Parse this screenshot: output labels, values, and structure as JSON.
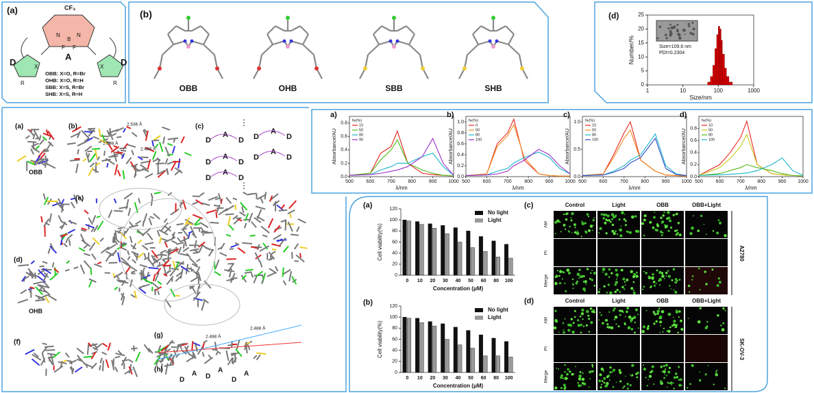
{
  "panel_a": {
    "label": "(a)",
    "cf3": "CF₃",
    "acceptor": "A",
    "donor": "D",
    "x": "X",
    "r": "R",
    "b": "B",
    "f": "F",
    "n": "N",
    "variants": [
      "OBB: X=O, R=Br",
      "OHB: X=O, R=H",
      "SBB: X=S, R=Br",
      "SHB: X=S, R=H"
    ]
  },
  "panel_b": {
    "label": "(b)",
    "molecules": [
      "OBB",
      "OHB",
      "SBB",
      "SHB"
    ]
  },
  "dls": {
    "type": "histogram",
    "label": "(d)",
    "ylabel": "Number/%",
    "xlabel": "Size/nm",
    "size_text": "Size=109.6 nm",
    "pdi_text": "PDI=0.2304",
    "log_x": true,
    "color": "#d40000",
    "xlim": [
      1,
      1000
    ],
    "xticks": [
      1,
      10,
      100,
      1000
    ],
    "ylim": [
      0,
      25
    ],
    "yticks": [
      0,
      5,
      10,
      15,
      20,
      25
    ],
    "bins": [
      50,
      60,
      70,
      80,
      90,
      100,
      110,
      120,
      130,
      150,
      170,
      200,
      250
    ],
    "counts": [
      1,
      3,
      7,
      13,
      18,
      21,
      20,
      16,
      11,
      6,
      3,
      1
    ]
  },
  "crystal": {
    "labels": [
      "(a)",
      "(b)",
      "(c)",
      "(d)",
      "(e)",
      "(f)",
      "(g)",
      "(h)"
    ],
    "names": [
      "OBB",
      "OHB"
    ],
    "distances": [
      "2.536 Å",
      "2.608 Å",
      "2.486 Å",
      "2.488 Å"
    ],
    "motif": [
      "D",
      "A"
    ],
    "ellipsis": "⋮"
  },
  "spectra": {
    "xlabel": "λ/nm",
    "ylabel": "Absorbance/AU",
    "legend_title": "fw(%)",
    "xlim": [
      500,
      1000
    ],
    "xticks": [
      500,
      600,
      700,
      800,
      900,
      1000
    ],
    "x": [
      500,
      600,
      650,
      700,
      730,
      780,
      850,
      900,
      950,
      1000
    ],
    "charts": [
      {
        "type": "line",
        "label": "a)",
        "ylim": [
          0,
          0.9
        ],
        "yticks": [
          {
            "value": 0,
            "label": "0.0"
          },
          0.2,
          0.4,
          0.6,
          0.8
        ],
        "series": [
          {
            "name": "10",
            "color": "#e8231f",
            "values": [
              0.02,
              0.05,
              0.35,
              0.45,
              0.68,
              0.2,
              0.05,
              0.03,
              0.02,
              0.01
            ]
          },
          {
            "name": "50",
            "color": "#4cbb17",
            "values": [
              0.02,
              0.05,
              0.25,
              0.4,
              0.55,
              0.2,
              0.1,
              0.05,
              0.02,
              0.01
            ]
          },
          {
            "name": "80",
            "color": "#19b5c9",
            "values": [
              0.02,
              0.03,
              0.1,
              0.15,
              0.2,
              0.2,
              0.3,
              0.35,
              0.15,
              0.02
            ]
          },
          {
            "name": "90",
            "color": "#9b2bc9",
            "values": [
              0.02,
              0.03,
              0.05,
              0.08,
              0.1,
              0.15,
              0.3,
              0.57,
              0.2,
              0.02
            ]
          }
        ]
      },
      {
        "type": "line",
        "label": "b)",
        "ylim": [
          0,
          1.1
        ],
        "yticks": [
          {
            "value": 0,
            "label": "0.0"
          },
          0.2,
          0.4,
          0.6,
          0.8,
          {
            "value": 1,
            "label": "1.0"
          }
        ],
        "series": [
          {
            "name": "0",
            "color": "#e8231f",
            "values": [
              0.02,
              0.05,
              0.6,
              0.8,
              1.05,
              0.3,
              0.05,
              0.02,
              0.01,
              0.01
            ]
          },
          {
            "name": "50",
            "color": "#f08c1a",
            "values": [
              0.02,
              0.05,
              0.55,
              0.75,
              0.95,
              0.35,
              0.05,
              0.02,
              0.01,
              0.01
            ]
          },
          {
            "name": "80",
            "color": "#19b5c9",
            "values": [
              0.02,
              0.03,
              0.1,
              0.15,
              0.25,
              0.35,
              0.45,
              0.35,
              0.15,
              0.05
            ]
          },
          {
            "name": "100",
            "color": "#9b2bc9",
            "values": [
              0.02,
              0.03,
              0.05,
              0.1,
              0.2,
              0.3,
              0.5,
              0.4,
              0.2,
              0.05
            ]
          }
        ]
      },
      {
        "type": "line",
        "label": "c)",
        "ylim": [
          0,
          1.1
        ],
        "yticks": [
          {
            "value": 0,
            "label": "0.0"
          },
          0.5,
          {
            "value": 1,
            "label": "1.0"
          }
        ],
        "series": [
          {
            "name": "10",
            "color": "#e8231f",
            "values": [
              0.02,
              0.05,
              0.4,
              0.8,
              1.0,
              0.3,
              0.1,
              0.03,
              0.02,
              0.01
            ]
          },
          {
            "name": "50",
            "color": "#f08c1a",
            "values": [
              0.02,
              0.05,
              0.35,
              0.7,
              0.85,
              0.3,
              0.1,
              0.03,
              0.02,
              0.01
            ]
          },
          {
            "name": "80",
            "color": "#19b5c9",
            "values": [
              0.02,
              0.03,
              0.1,
              0.2,
              0.3,
              0.4,
              0.78,
              0.2,
              0.05,
              0.02
            ]
          },
          {
            "name": "100",
            "color": "#2846c8",
            "values": [
              0.02,
              0.03,
              0.08,
              0.15,
              0.25,
              0.35,
              0.7,
              0.15,
              0.04,
              0.02
            ]
          }
        ]
      },
      {
        "type": "line",
        "label": "d)",
        "ylim": [
          0,
          1.0
        ],
        "yticks": [
          {
            "value": 0,
            "label": "0.0"
          },
          0.2,
          0.4,
          0.6,
          0.8
        ],
        "series": [
          {
            "name": "10",
            "color": "#e8231f",
            "values": [
              0.02,
              0.2,
              0.4,
              0.65,
              0.92,
              0.2,
              0.05,
              0.03,
              0.02,
              0.01
            ]
          },
          {
            "name": "50",
            "color": "#c9c917",
            "values": [
              0.02,
              0.15,
              0.3,
              0.5,
              0.7,
              0.2,
              0.05,
              0.03,
              0.02,
              0.01
            ]
          },
          {
            "name": "80",
            "color": "#4cbb17",
            "values": [
              0.02,
              0.05,
              0.1,
              0.15,
              0.2,
              0.15,
              0.1,
              0.05,
              0.02,
              0.01
            ]
          },
          {
            "name": "100",
            "color": "#19b5c9",
            "values": [
              0.02,
              0.03,
              0.04,
              0.05,
              0.06,
              0.1,
              0.2,
              0.31,
              0.1,
              0.02
            ]
          }
        ]
      }
    ]
  },
  "viability": {
    "xlabel": "Concentration (μM)",
    "ylabel": "Cell viability(%)",
    "categories": [
      "0",
      "10",
      "20",
      "30",
      "40",
      "50",
      "60",
      "80",
      "100"
    ],
    "ylim": [
      0,
      120
    ],
    "yticks": [
      0,
      20,
      40,
      60,
      80,
      100,
      120
    ],
    "charts": [
      {
        "type": "bar",
        "label": "(a)",
        "series": [
          {
            "name": "No light",
            "color": "#111111",
            "values": [
              100,
              97,
              93,
              90,
              86,
              80,
              70,
              62,
              56
            ]
          },
          {
            "name": "Light",
            "color": "#9a9a9a",
            "values": [
              98,
              92,
              85,
              75,
              60,
              50,
              43,
              33,
              31
            ]
          }
        ]
      },
      {
        "type": "bar",
        "label": "(b)",
        "series": [
          {
            "name": "No light",
            "color": "#111111",
            "values": [
              100,
              98,
              92,
              88,
              82,
              76,
              68,
              62,
              56
            ]
          },
          {
            "name": "Light",
            "color": "#9a9a9a",
            "values": [
              98,
              90,
              84,
              60,
              50,
              44,
              30,
              30,
              28
            ]
          }
        ]
      }
    ]
  },
  "imaging": {
    "labels": [
      "(c)",
      "(d)"
    ],
    "columns": [
      "Control",
      "Light",
      "OBB",
      "OBB+Light"
    ],
    "rows": [
      "AM",
      "PI",
      "Merge"
    ],
    "cell_lines": [
      "A2780",
      "SK-OV-3"
    ]
  }
}
